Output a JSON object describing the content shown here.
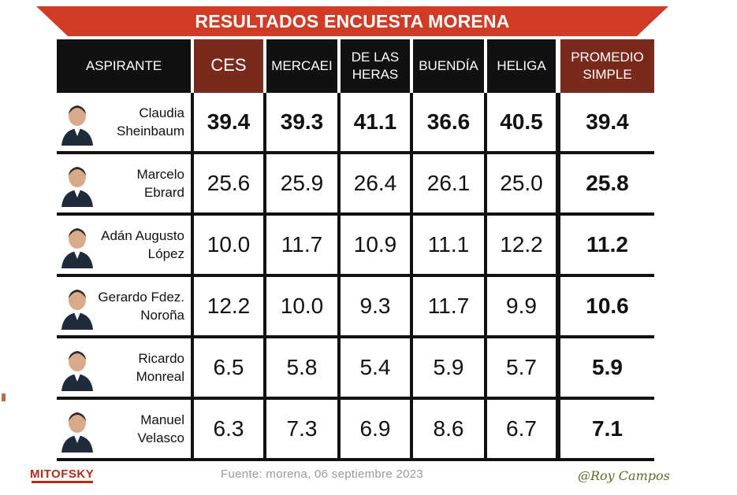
{
  "title": "RESULTADOS ENCUESTA MORENA",
  "columns": [
    "ASPIRANTE",
    "CES",
    "MERCAEI",
    "DE LAS HERAS",
    "BUENDÍA",
    "HELIGA",
    "PROMEDIO SIMPLE"
  ],
  "rows": [
    {
      "name": "Claudia\nSheinbaum",
      "values": [
        "39.4",
        "39.3",
        "41.1",
        "36.6",
        "40.5"
      ],
      "average": "39.4"
    },
    {
      "name": "Marcelo\nEbrard",
      "values": [
        "25.6",
        "25.9",
        "26.4",
        "26.1",
        "25.0"
      ],
      "average": "25.8"
    },
    {
      "name": "Adán Augusto\nLópez",
      "values": [
        "10.0",
        "11.7",
        "10.9",
        "11.1",
        "12.2"
      ],
      "average": "11.2"
    },
    {
      "name": "Gerardo Fdez.\nNoroña",
      "values": [
        "12.2",
        "10.0",
        "9.3",
        "11.7",
        "9.9"
      ],
      "average": "10.6"
    },
    {
      "name": "Ricardo\nMonreal",
      "values": [
        "6.5",
        "5.8",
        "5.4",
        "5.9",
        "5.7"
      ],
      "average": "5.9"
    },
    {
      "name": "Manuel\nVelasco",
      "values": [
        "6.3",
        "7.3",
        "6.9",
        "8.6",
        "6.7"
      ],
      "average": "7.1"
    }
  ],
  "footer": {
    "logo": "MITOFSKY",
    "source": "Fuente: morena,  06 septiembre  2023",
    "signature": "@Roy Campos"
  },
  "colors": {
    "banner": "#cf3b24",
    "header_highlight": "#7a2a1c",
    "header": "#111111"
  },
  "chart_data": {
    "type": "table",
    "title": "RESULTADOS ENCUESTA MORENA",
    "columns": [
      "ASPIRANTE",
      "CES",
      "MERCAEI",
      "DE LAS HERAS",
      "BUENDÍA",
      "HELIGA",
      "PROMEDIO SIMPLE"
    ],
    "rows": [
      [
        "Claudia Sheinbaum",
        39.4,
        39.3,
        41.1,
        36.6,
        40.5,
        39.4
      ],
      [
        "Marcelo Ebrard",
        25.6,
        25.9,
        26.4,
        26.1,
        25.0,
        25.8
      ],
      [
        "Adán Augusto López",
        10.0,
        11.7,
        10.9,
        11.1,
        12.2,
        11.2
      ],
      [
        "Gerardo Fdez. Noroña",
        12.2,
        10.0,
        9.3,
        11.7,
        9.9,
        10.6
      ],
      [
        "Ricardo Monreal",
        6.5,
        5.8,
        5.4,
        5.9,
        5.7,
        5.9
      ],
      [
        "Manuel Velasco",
        6.3,
        7.3,
        6.9,
        8.6,
        6.7,
        7.1
      ]
    ]
  }
}
